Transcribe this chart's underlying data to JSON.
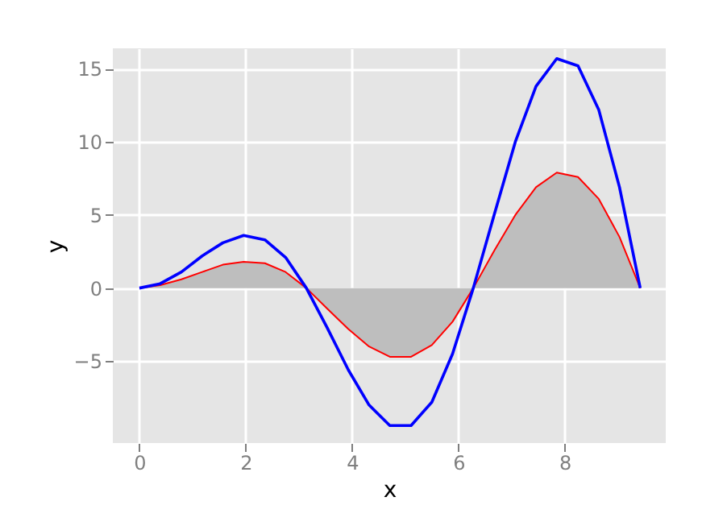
{
  "chart_data": {
    "type": "line",
    "xlabel": "x",
    "ylabel": "y",
    "x": [
      0,
      0.39,
      0.79,
      1.18,
      1.57,
      1.96,
      2.36,
      2.75,
      3.14,
      3.53,
      3.93,
      4.32,
      4.71,
      5.11,
      5.5,
      5.89,
      6.28,
      6.68,
      7.07,
      7.46,
      7.85,
      8.25,
      8.64,
      9.03,
      9.42
    ],
    "series": [
      {
        "type": "area",
        "color": "#ff0000",
        "values": [
          0,
          0.2,
          0.6,
          1.1,
          1.6,
          1.8,
          1.7,
          1.1,
          0,
          -1.4,
          -2.8,
          -4,
          -4.7,
          -4.7,
          -3.9,
          -2.3,
          0,
          2.6,
          5,
          6.9,
          7.9,
          7.6,
          6.1,
          3.5,
          0
        ]
      },
      {
        "color": "#0000ff",
        "values": [
          0,
          0.3,
          1.1,
          2.2,
          3.1,
          3.6,
          3.3,
          2.1,
          0,
          -2.7,
          -5.6,
          -8,
          -9.4,
          -9.4,
          -7.8,
          -4.5,
          0,
          5.1,
          10,
          13.8,
          15.7,
          15.2,
          12.2,
          6.9,
          0
        ]
      }
    ],
    "xlim": [
      -0.5,
      9.9
    ],
    "ylim": [
      -10.6,
      16.4
    ],
    "xticks": [
      0,
      2,
      4,
      6,
      8
    ],
    "yticks": [
      -5,
      0,
      5,
      10,
      15
    ],
    "grid": true
  }
}
